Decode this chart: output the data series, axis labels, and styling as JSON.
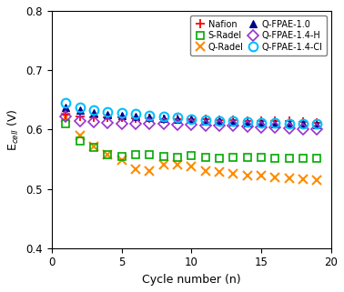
{
  "cycles": [
    1,
    2,
    3,
    4,
    5,
    6,
    7,
    8,
    9,
    10,
    11,
    12,
    13,
    14,
    15,
    16,
    17,
    18,
    19
  ],
  "nafion": [
    0.625,
    0.622,
    0.621,
    0.621,
    0.62,
    0.619,
    0.619,
    0.618,
    0.618,
    0.617,
    0.617,
    0.616,
    0.616,
    0.615,
    0.615,
    0.614,
    0.614,
    0.613,
    0.612
  ],
  "s_radel": [
    0.61,
    0.58,
    0.57,
    0.558,
    0.555,
    0.558,
    0.558,
    0.555,
    0.553,
    0.556,
    0.553,
    0.552,
    0.553,
    0.553,
    0.553,
    0.552,
    0.552,
    0.552,
    0.551
  ],
  "q_radel": [
    0.62,
    0.59,
    0.572,
    0.558,
    0.548,
    0.533,
    0.53,
    0.54,
    0.54,
    0.537,
    0.53,
    0.528,
    0.526,
    0.523,
    0.522,
    0.52,
    0.518,
    0.516,
    0.515
  ],
  "q_fpae_10": [
    0.638,
    0.632,
    0.628,
    0.625,
    0.623,
    0.622,
    0.62,
    0.619,
    0.618,
    0.617,
    0.615,
    0.614,
    0.613,
    0.612,
    0.611,
    0.61,
    0.609,
    0.609,
    0.608
  ],
  "q_fpae_14h": [
    0.622,
    0.615,
    0.613,
    0.612,
    0.61,
    0.61,
    0.609,
    0.609,
    0.608,
    0.608,
    0.607,
    0.607,
    0.606,
    0.605,
    0.604,
    0.603,
    0.602,
    0.601,
    0.601
  ],
  "q_fpae_14cl": [
    0.645,
    0.638,
    0.633,
    0.63,
    0.628,
    0.626,
    0.624,
    0.622,
    0.62,
    0.618,
    0.616,
    0.615,
    0.614,
    0.613,
    0.612,
    0.611,
    0.61,
    0.61,
    0.609
  ],
  "colors": {
    "nafion": "#ff0000",
    "s_radel": "#00aa00",
    "q_radel": "#ff8c00",
    "q_fpae_10": "#00008b",
    "q_fpae_14h": "#9932cc",
    "q_fpae_14cl": "#00bfff"
  },
  "xlabel": "Cycle number (n)",
  "ylabel": "E$_{cell}$ (V)",
  "xlim": [
    0,
    20
  ],
  "ylim": [
    0.4,
    0.8
  ],
  "yticks": [
    0.4,
    0.5,
    0.6,
    0.7,
    0.8
  ],
  "xticks": [
    0,
    5,
    10,
    15,
    20
  ],
  "legend_col1": [
    "Nafion",
    "Q-Radel",
    "Q-FPAE-1.4-H"
  ],
  "legend_col2": [
    "S-Radel",
    "Q-FPAE-1.0",
    "Q-FPAE-1.4-Cl"
  ]
}
